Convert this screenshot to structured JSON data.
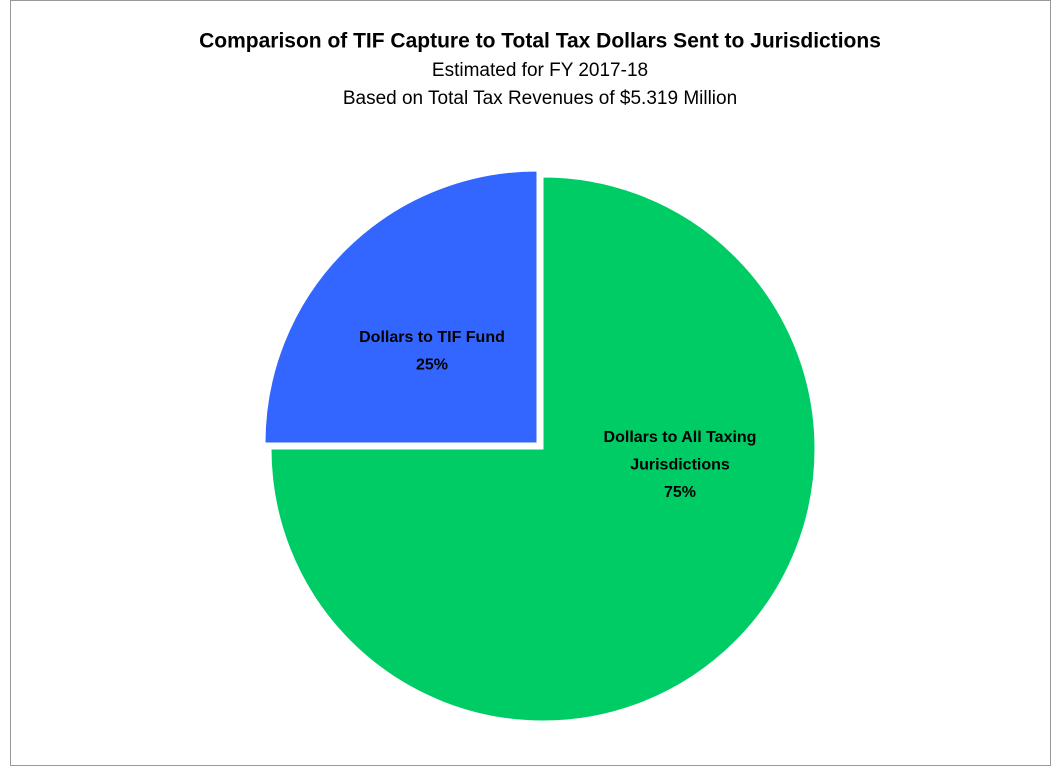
{
  "chart_data": {
    "type": "pie",
    "title": "Comparison of TIF Capture to Total Tax Dollars Sent to Jurisdictions",
    "subtitle": [
      "Estimated for FY 2017-18",
      "Based on Total Tax Revenues of $5.319 Million"
    ],
    "categories": [
      "Dollars to All Taxing Jurisdictions",
      "Dollars to TIF Fund"
    ],
    "values": [
      75,
      25
    ],
    "value_labels": [
      "75%",
      "25%"
    ],
    "colors": [
      "#00cc66",
      "#3366ff"
    ],
    "exploded": [
      false,
      true
    ]
  }
}
